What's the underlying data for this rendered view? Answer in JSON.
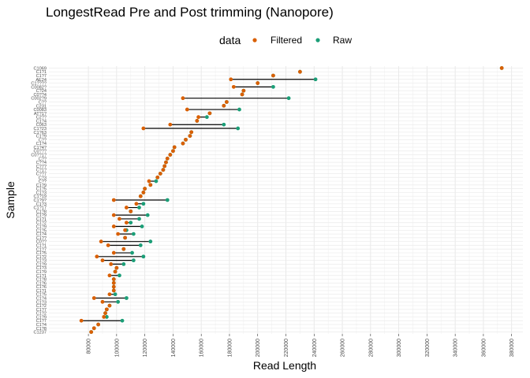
{
  "chart_data": {
    "type": "scatter",
    "subtype": "dumbbell",
    "title": "LongestRead Pre and Post trimming (Nanopore)",
    "xlabel": "Read Length",
    "ylabel": "Sample",
    "xlim": [
      52000,
      388000
    ],
    "xticks": [
      80000,
      100000,
      120000,
      140000,
      160000,
      180000,
      200000,
      220000,
      240000,
      260000,
      280000,
      300000,
      320000,
      340000,
      360000,
      380000
    ],
    "grid": true,
    "legend": {
      "title": "data",
      "position": "top",
      "entries": [
        {
          "name": "Filtered",
          "color": "#D95F02"
        },
        {
          "name": "Raw",
          "color": "#1B9E77"
        }
      ]
    },
    "series_colors": {
      "Filtered": "#D95F02",
      "Raw": "#1B9E77"
    },
    "samples": [
      {
        "label": "C1069",
        "filtered": 373000,
        "raw": 373000
      },
      {
        "label": "C1?1",
        "filtered": 230000,
        "raw": 230000
      },
      {
        "label": "C1?7",
        "filtered": 211000,
        "raw": 211000
      },
      {
        "label": "AE24",
        "filtered": 181000,
        "raw": 241000
      },
      {
        "label": "C1????",
        "filtered": 200000,
        "raw": 200000
      },
      {
        "label": "C0082?",
        "filtered": 183000,
        "raw": 211000
      },
      {
        "label": "C?24",
        "filtered": 190000,
        "raw": 190000
      },
      {
        "label": "C0??4",
        "filtered": 189000,
        "raw": 189000
      },
      {
        "label": "C002?9",
        "filtered": 147000,
        "raw": 222000
      },
      {
        "label": "C??",
        "filtered": 178000,
        "raw": 178000
      },
      {
        "label": "C231",
        "filtered": 176000,
        "raw": 176000
      },
      {
        "label": "C0083",
        "filtered": 150000,
        "raw": 187000
      },
      {
        "label": "AT?1?",
        "filtered": 166000,
        "raw": 166000
      },
      {
        "label": "C2??",
        "filtered": 158000,
        "raw": 164000
      },
      {
        "label": "C1?4",
        "filtered": 157000,
        "raw": 157000
      },
      {
        "label": "C063",
        "filtered": 138000,
        "raw": 176000
      },
      {
        "label": "C1?23",
        "filtered": 119000,
        "raw": 186000
      },
      {
        "label": "C1?63",
        "filtered": 153000,
        "raw": 153000
      },
      {
        "label": "C1?9",
        "filtered": 152000,
        "raw": 152000
      },
      {
        "label": "C??",
        "filtered": 149000,
        "raw": 149000
      },
      {
        "label": "C1?4",
        "filtered": 147000,
        "raw": 147000
      },
      {
        "label": "C1?4?",
        "filtered": 141000,
        "raw": 141000
      },
      {
        "label": "C0???",
        "filtered": 140000,
        "raw": 140000
      },
      {
        "label": "C0??1?",
        "filtered": 138000,
        "raw": 138000
      },
      {
        "label": "C??",
        "filtered": 136000,
        "raw": 136000
      },
      {
        "label": "C??4",
        "filtered": 135000,
        "raw": 135000
      },
      {
        "label": "C?7?",
        "filtered": 134000,
        "raw": 134000
      },
      {
        "label": "C?1?",
        "filtered": 133000,
        "raw": 133000
      },
      {
        "label": "C??7",
        "filtered": 131000,
        "raw": 131000
      },
      {
        "label": "C?3",
        "filtered": 129000,
        "raw": 129000
      },
      {
        "label": "C??",
        "filtered": 123000,
        "raw": 128000
      },
      {
        "label": "C1?9",
        "filtered": 124000,
        "raw": 124000
      },
      {
        "label": "C1?5",
        "filtered": 120000,
        "raw": 120000
      },
      {
        "label": "C1?3",
        "filtered": 119000,
        "raw": 119000
      },
      {
        "label": "C1?19",
        "filtered": 117000,
        "raw": 117000
      },
      {
        "label": "C1?9?",
        "filtered": 98000,
        "raw": 136000
      },
      {
        "label": "C1?3",
        "filtered": 114000,
        "raw": 119000
      },
      {
        "label": "C1?17",
        "filtered": 107000,
        "raw": 116000
      },
      {
        "label": "C1?8",
        "filtered": 110000,
        "raw": 110000
      },
      {
        "label": "C1?9",
        "filtered": 98000,
        "raw": 122000
      },
      {
        "label": "C1?1",
        "filtered": 102000,
        "raw": 116000
      },
      {
        "label": "C1?2",
        "filtered": 107000,
        "raw": 110000
      },
      {
        "label": "C1?9",
        "filtered": 98000,
        "raw": 118000
      },
      {
        "label": "C1?5",
        "filtered": 106000,
        "raw": 107000
      },
      {
        "label": "C1?4",
        "filtered": 101000,
        "raw": 112000
      },
      {
        "label": "C1??",
        "filtered": 106000,
        "raw": 106000
      },
      {
        "label": "C0??",
        "filtered": 89000,
        "raw": 124000
      },
      {
        "label": "C1?1",
        "filtered": 94000,
        "raw": 117000
      },
      {
        "label": "C1?7",
        "filtered": 105000,
        "raw": 105000
      },
      {
        "label": "C1?5",
        "filtered": 98000,
        "raw": 111000
      },
      {
        "label": "C1?2",
        "filtered": 86000,
        "raw": 119000
      },
      {
        "label": "C1?3",
        "filtered": 90000,
        "raw": 112000
      },
      {
        "label": "C1?9",
        "filtered": 96000,
        "raw": 105000
      },
      {
        "label": "C1?3",
        "filtered": 100000,
        "raw": 100000
      },
      {
        "label": "C1?9",
        "filtered": 99000,
        "raw": 99000
      },
      {
        "label": "C1?1",
        "filtered": 95000,
        "raw": 102000
      },
      {
        "label": "C1?8",
        "filtered": 98000,
        "raw": 98000
      },
      {
        "label": "C1?6",
        "filtered": 98000,
        "raw": 98000
      },
      {
        "label": "C1?6",
        "filtered": 98000,
        "raw": 98000
      },
      {
        "label": "C1?1",
        "filtered": 98000,
        "raw": 98000
      },
      {
        "label": "C1?5",
        "filtered": 95000,
        "raw": 99000
      },
      {
        "label": "C1?4",
        "filtered": 84000,
        "raw": 107000
      },
      {
        "label": "C1?3",
        "filtered": 90000,
        "raw": 101000
      },
      {
        "label": "C1?2",
        "filtered": 95000,
        "raw": 95000
      },
      {
        "label": "C1?7",
        "filtered": 93000,
        "raw": 93000
      },
      {
        "label": "C1?2",
        "filtered": 92000,
        "raw": 92000
      },
      {
        "label": "C1?9",
        "filtered": 91000,
        "raw": 93000
      },
      {
        "label": "C1?7",
        "filtered": 75000,
        "raw": 104000
      },
      {
        "label": "C1?4",
        "filtered": 87000,
        "raw": 87000
      },
      {
        "label": "C1?8",
        "filtered": 84000,
        "raw": 84000
      },
      {
        "label": "C1237",
        "filtered": 82000,
        "raw": 82000
      }
    ]
  }
}
